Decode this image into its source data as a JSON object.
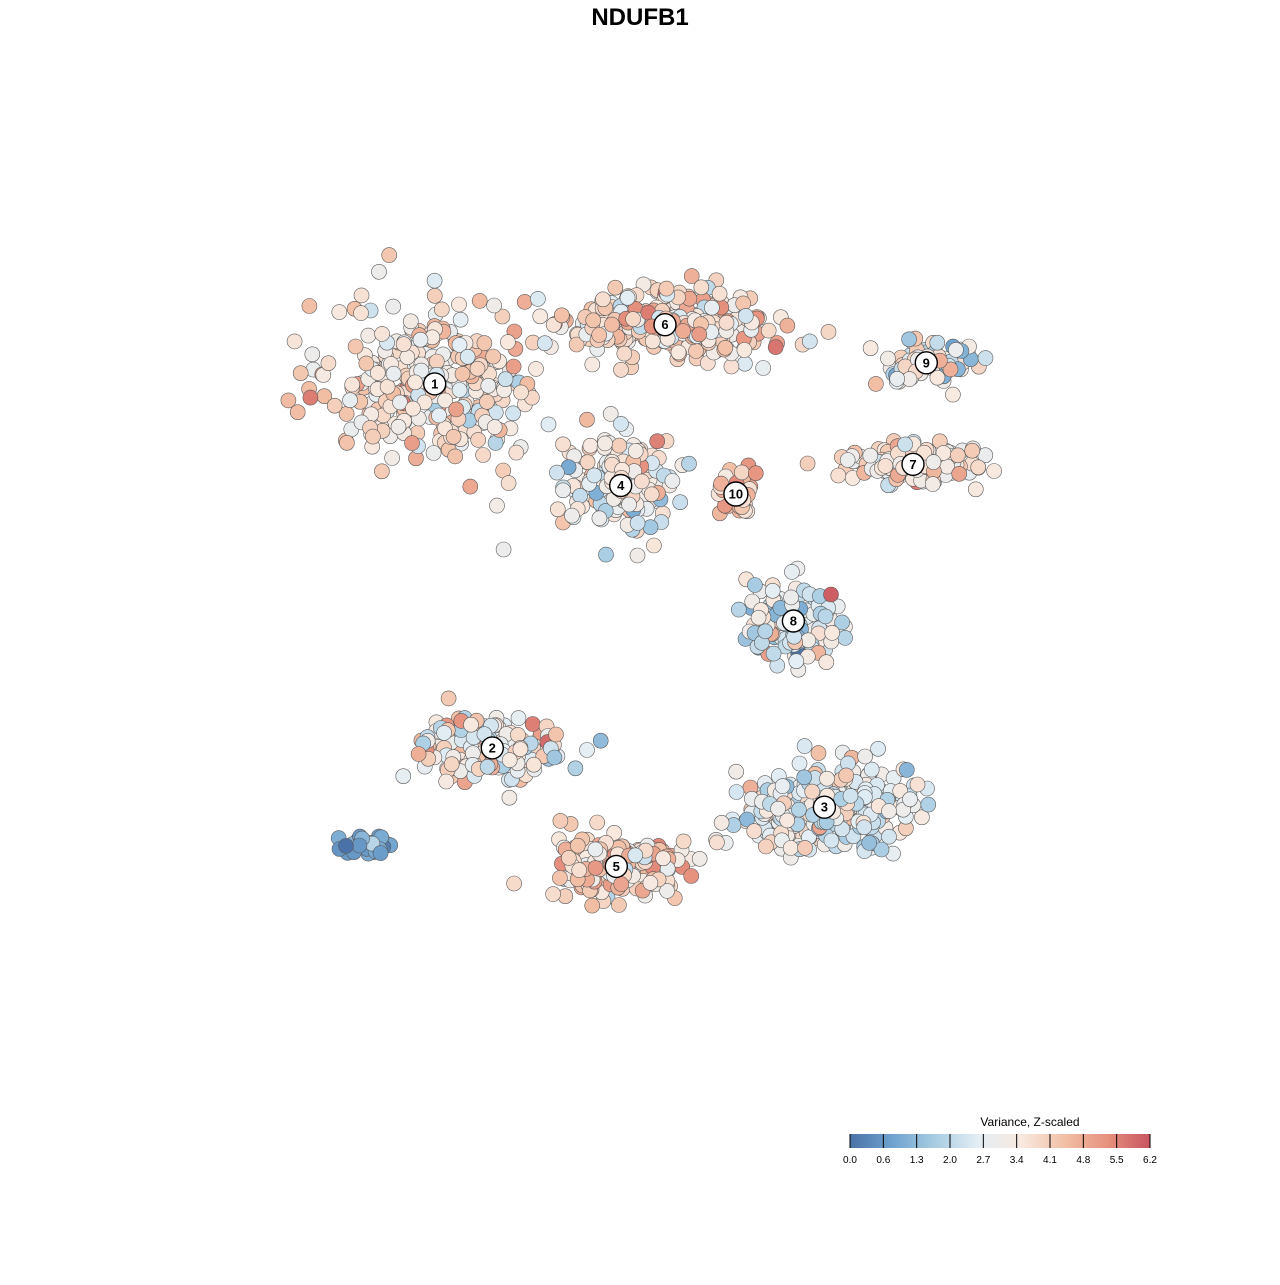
{
  "chart_data": {
    "type": "scatter",
    "title": "NDUFB1",
    "xlabel": "",
    "ylabel": "",
    "grid": false,
    "legend": {
      "title": "Variance, Z-scaled",
      "placement": "bottom-right",
      "ticks": [
        "0.0",
        "0.6",
        "1.3",
        "2.0",
        "2.7",
        "3.4",
        "4.1",
        "4.8",
        "5.5",
        "6.2"
      ],
      "range": [
        0.0,
        6.2
      ],
      "palette": [
        "#4a72a8",
        "#6fa3cf",
        "#a9cde3",
        "#e4eef4",
        "#f8e9df",
        "#f2c0a6",
        "#e6917e",
        "#c8545f"
      ]
    },
    "clusters": [
      {
        "label": "1",
        "x": -5.2,
        "y": 5.8,
        "spread_x": 2.6,
        "spread_y": 2.1,
        "n": 340,
        "mean": 3.7,
        "sd": 0.75
      },
      {
        "label": "2",
        "x": -3.9,
        "y": -2.8,
        "spread_x": 1.8,
        "spread_y": 0.9,
        "n": 170,
        "mean": 3.3,
        "sd": 0.9
      },
      {
        "label": "3",
        "x": 3.6,
        "y": -4.2,
        "spread_x": 2.0,
        "spread_y": 1.1,
        "n": 360,
        "mean": 3.0,
        "sd": 0.75
      },
      {
        "label": "4",
        "x": -1.0,
        "y": 3.4,
        "spread_x": 1.5,
        "spread_y": 1.2,
        "n": 180,
        "mean": 3.1,
        "sd": 0.8
      },
      {
        "label": "5",
        "x": -1.1,
        "y": -5.6,
        "spread_x": 1.6,
        "spread_y": 0.9,
        "n": 260,
        "mean": 3.9,
        "sd": 0.85
      },
      {
        "label": "6",
        "x": 0.0,
        "y": 7.2,
        "spread_x": 2.6,
        "spread_y": 0.9,
        "n": 320,
        "mean": 3.8,
        "sd": 0.75
      },
      {
        "label": "7",
        "x": 5.6,
        "y": 3.9,
        "spread_x": 1.6,
        "spread_y": 0.5,
        "n": 150,
        "mean": 3.5,
        "sd": 0.8
      },
      {
        "label": "8",
        "x": 2.9,
        "y": 0.2,
        "spread_x": 1.3,
        "spread_y": 1.0,
        "n": 130,
        "mean": 2.7,
        "sd": 0.9
      },
      {
        "label": "9",
        "x": 5.9,
        "y": 6.3,
        "spread_x": 1.3,
        "spread_y": 0.6,
        "n": 80,
        "mean": 3.0,
        "sd": 0.9
      },
      {
        "label": "10",
        "x": 1.6,
        "y": 3.2,
        "spread_x": 0.5,
        "spread_y": 0.5,
        "n": 40,
        "mean": 4.4,
        "sd": 0.6
      },
      {
        "label": "",
        "x": -6.8,
        "y": -5.1,
        "spread_x": 0.6,
        "spread_y": 0.3,
        "n": 30,
        "mean": 0.8,
        "sd": 0.5
      }
    ],
    "xlim": [
      -10.5,
      10.5
    ],
    "ylim": [
      -11.0,
      10.5
    ]
  }
}
